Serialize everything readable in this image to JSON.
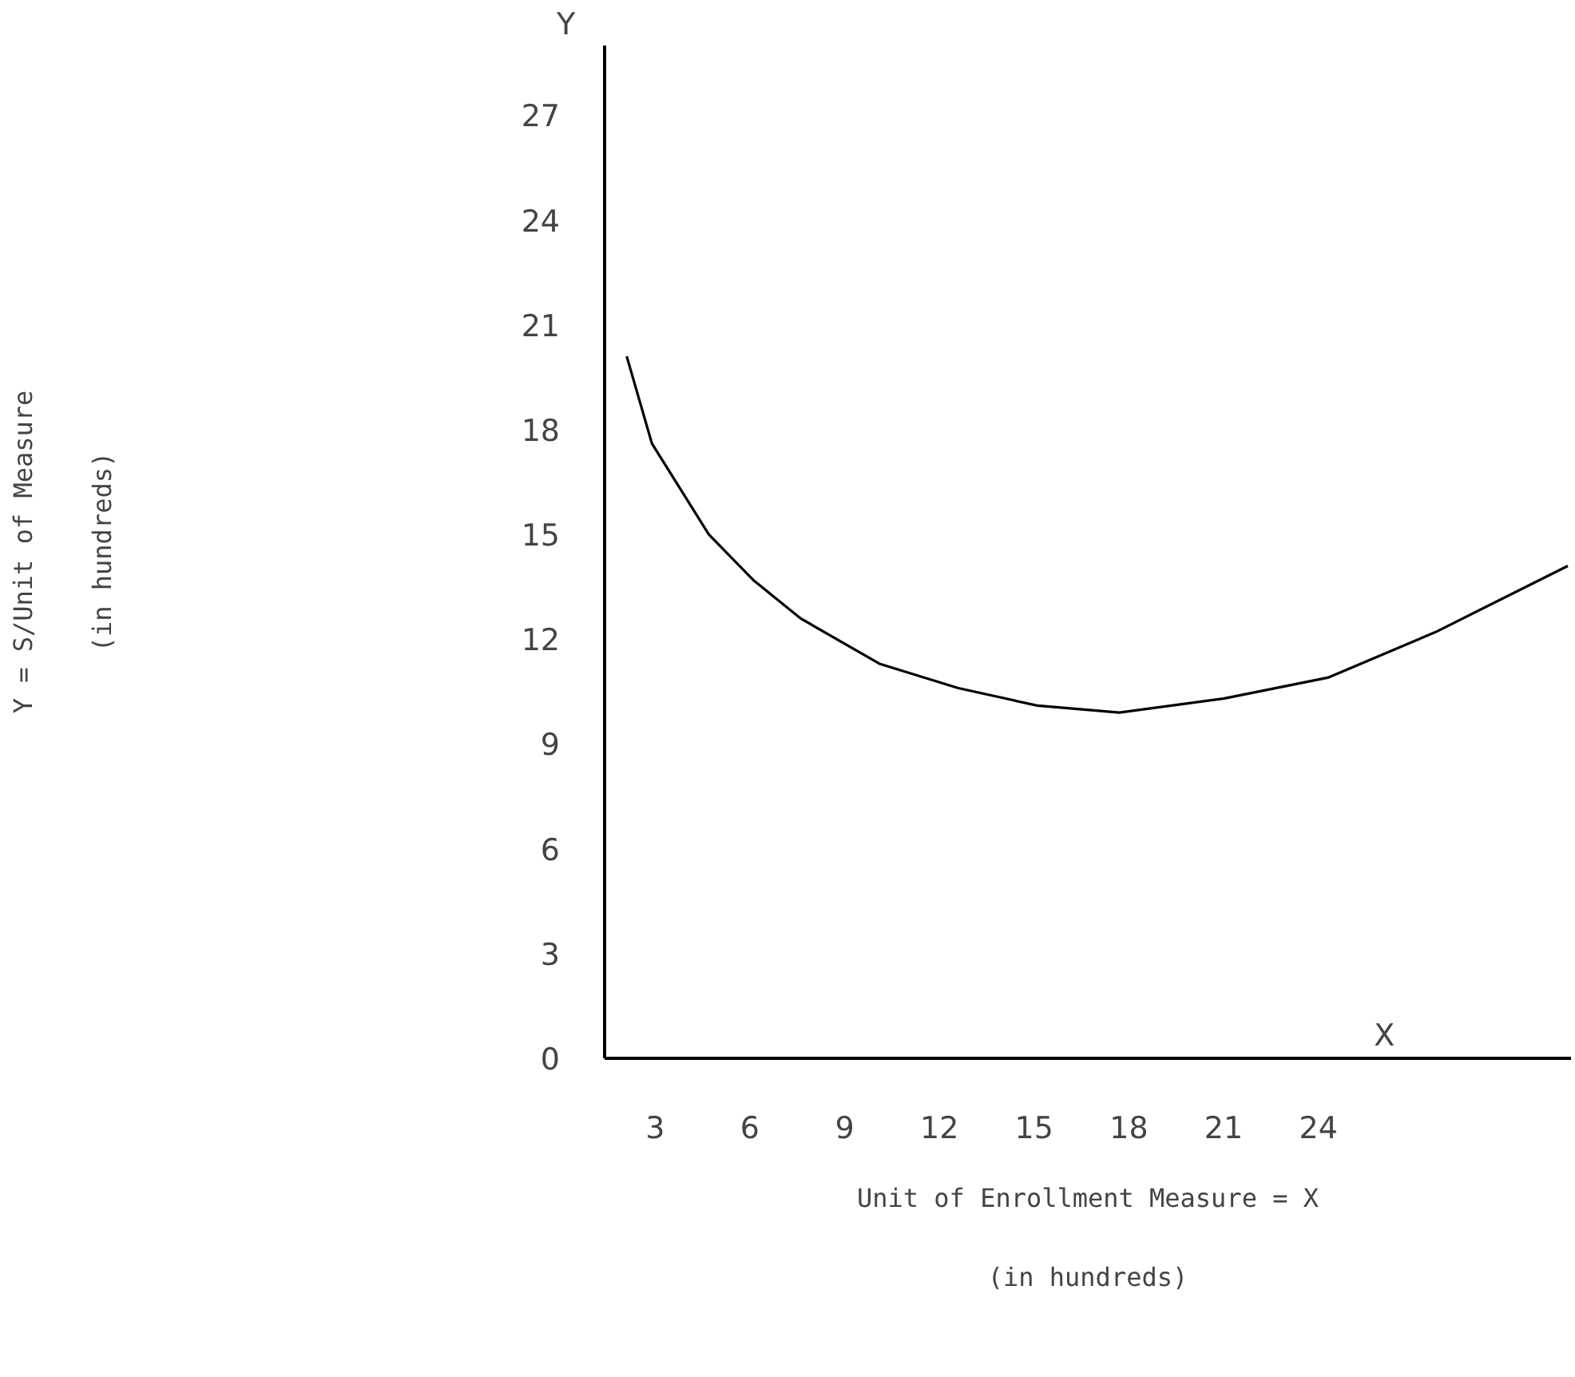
{
  "chart_data": {
    "type": "line",
    "xlabel": "Unit of Enrollment Measure = X\n(in hundreds)",
    "ylabel": "Y = S/Unit of Measure\n(in hundreds)",
    "annotations": [
      "Y",
      "X"
    ],
    "series": [
      {
        "color": "#000000",
        "x": [
          2.1,
          2.9,
          4.7,
          6.1,
          7.6,
          10.1,
          12.6,
          15.1,
          17.7,
          21.0,
          24.3,
          27.7,
          31.9
        ],
        "values": [
          20.1,
          17.6,
          15.0,
          13.7,
          12.6,
          11.3,
          10.6,
          10.1,
          9.9,
          10.3,
          10.9,
          12.2,
          14.1
        ]
      }
    ],
    "xlim": [
      1.4,
      32
    ],
    "ylim": [
      0,
      29
    ],
    "xticks": [
      3,
      6,
      9,
      12,
      15,
      18,
      21,
      24
    ],
    "yticks": [
      0,
      3,
      6,
      9,
      12,
      15,
      18,
      21,
      24,
      27
    ],
    "grid": false,
    "marker": "none",
    "line_style": "solid"
  }
}
